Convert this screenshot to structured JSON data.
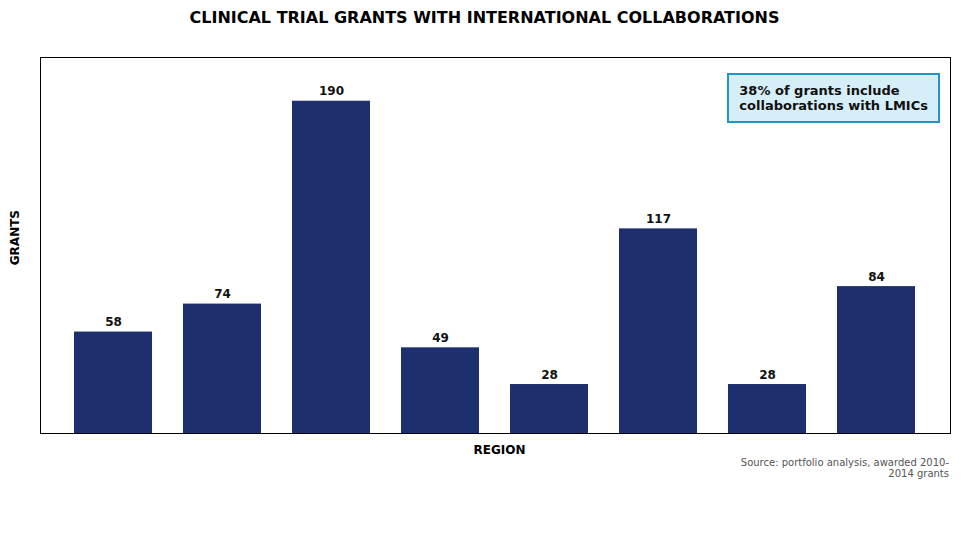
{
  "chart_data": {
    "type": "bar",
    "title": "CLINICAL TRIAL GRANTS WITH INTERNATIONAL COLLABORATIONS",
    "xlabel": "REGION",
    "ylabel": "GRANTS",
    "categories": [
      null,
      null,
      null,
      null,
      null,
      null,
      null,
      null
    ],
    "values": [
      58,
      74,
      190,
      49,
      28,
      117,
      28,
      84
    ],
    "color": "#1d2f6f",
    "ylim": [
      0,
      215
    ],
    "yticks": [],
    "grid": false,
    "tick_labels": false,
    "data_labels": true,
    "annotation": "38% of grants include\ncollaborations with LMICs",
    "source": "Source: portfolio analysis, awarded 2010-\n2014 grants"
  }
}
